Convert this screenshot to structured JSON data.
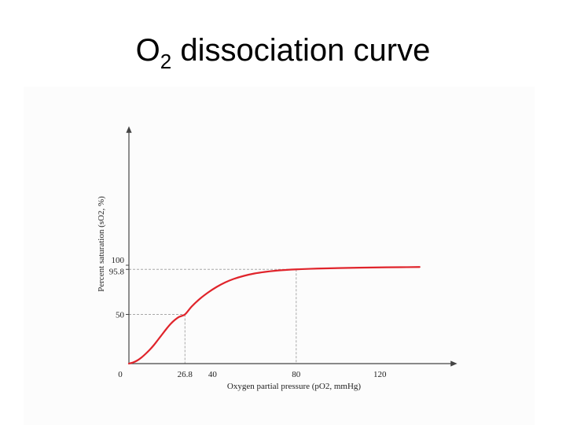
{
  "slide": {
    "title_main": "O",
    "title_sub": "2",
    "title_rest": " dissociation curve"
  },
  "chart_data": {
    "type": "line",
    "title": "O2 dissociation curve",
    "xlabel": "Oxygen partial pressure (pO2, mmHg)",
    "ylabel": "Percent saturation (sO2, %)",
    "xlim": [
      0,
      140
    ],
    "ylim": [
      0,
      100
    ],
    "grid": false,
    "x_ticks": [
      {
        "value": 0,
        "label": "0"
      },
      {
        "value": 26.8,
        "label": "26.8"
      },
      {
        "value": 40,
        "label": "40"
      },
      {
        "value": 80,
        "label": "80"
      },
      {
        "value": 120,
        "label": "120"
      }
    ],
    "y_ticks": [
      {
        "value": 0,
        "label": ""
      },
      {
        "value": 50,
        "label": "50"
      },
      {
        "value": 95.8,
        "label": "95.8"
      },
      {
        "value": 100,
        "label": "100"
      }
    ],
    "reference_lines": [
      {
        "x": 26.8,
        "y": 50
      },
      {
        "x": 80,
        "y": 95.8
      }
    ],
    "series": [
      {
        "color": "#e0242b",
        "x": [
          0,
          2,
          4,
          6,
          8,
          10,
          12,
          14,
          16,
          18,
          20,
          22,
          24,
          26.8,
          30,
          34,
          38,
          42,
          46,
          50,
          55,
          60,
          65,
          70,
          75,
          80,
          90,
          100,
          110,
          120,
          130,
          139
        ],
        "y": [
          0,
          1.2,
          3.2,
          6.2,
          10,
          14.2,
          19,
          24.5,
          30,
          35.5,
          40.5,
          44.5,
          47.5,
          50,
          58,
          66,
          72.5,
          78,
          82.5,
          86,
          89.2,
          91.6,
          93.2,
          94.4,
          95.2,
          95.8,
          96.6,
          97.1,
          97.5,
          97.8,
          98,
          98.2
        ]
      }
    ]
  }
}
